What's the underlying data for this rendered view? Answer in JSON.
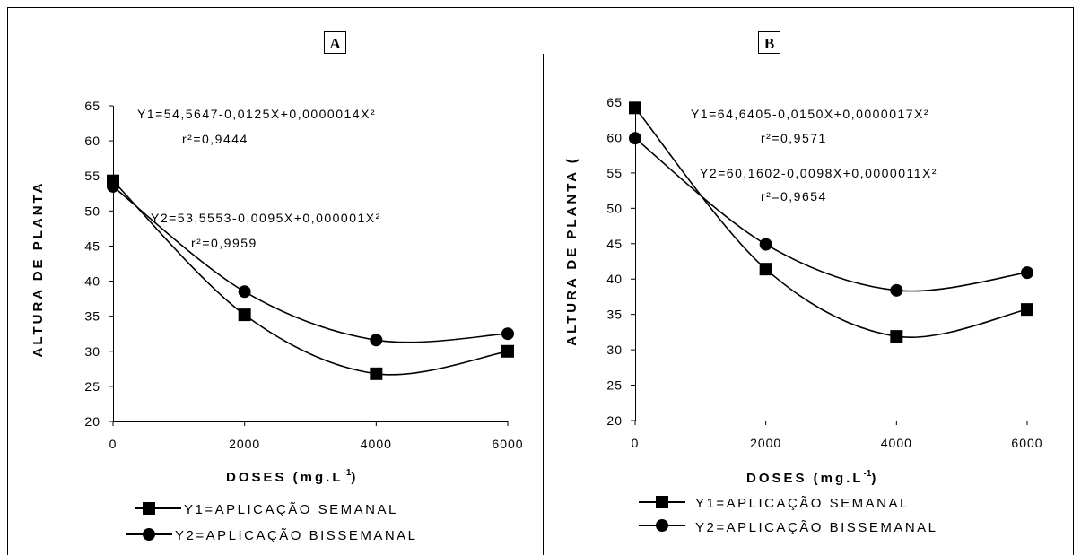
{
  "chart_data": [
    {
      "type": "line",
      "panel_label": "A",
      "ylabel": "ALTURA DE PLANTA",
      "xlabel_main": "DOSES (mg.L",
      "xlabel_sup": "-1",
      "xlabel_end": ")",
      "xlim": [
        0,
        6000
      ],
      "ylim": [
        20,
        65
      ],
      "xticks": [
        0,
        2000,
        4000,
        6000
      ],
      "yticks": [
        20,
        25,
        30,
        35,
        40,
        45,
        50,
        55,
        60,
        65
      ],
      "series": [
        {
          "name": "Y1=APLICAÇÃO SEMANAL",
          "marker": "square",
          "x": [
            0,
            2000,
            4000,
            6000
          ],
          "y": [
            54.3,
            35.2,
            26.8,
            30.0
          ]
        },
        {
          "name": "Y2=APLICAÇÃO BISSEMANAL",
          "marker": "circle",
          "x": [
            0,
            2000,
            4000,
            6000
          ],
          "y": [
            53.5,
            38.5,
            31.6,
            32.5
          ]
        }
      ],
      "curves": [
        {
          "a": 54.5647,
          "b": -0.0125,
          "c": 1.4e-06
        },
        {
          "a": 53.5553,
          "b": -0.0095,
          "c": 1e-06
        }
      ],
      "annotations": [
        "Y1=54,5647-0,0125X+0,0000014X²",
        "r²=0,9444",
        "Y2=53,5553-0,0095X+0,000001X²",
        "r²=0,9959"
      ]
    },
    {
      "type": "line",
      "panel_label": "B",
      "ylabel": "ALTURA DE PLANTA (",
      "xlabel_main": "DOSES (mg.L",
      "xlabel_sup": "-1",
      "xlabel_end": ")",
      "xlim": [
        0,
        6000
      ],
      "ylim": [
        20,
        65
      ],
      "xticks": [
        0,
        2000,
        4000,
        6000
      ],
      "yticks": [
        20,
        25,
        30,
        35,
        40,
        45,
        50,
        55,
        60,
        65
      ],
      "series": [
        {
          "name": "Y1=APLICAÇÃO SEMANAL",
          "marker": "square",
          "x": [
            0,
            2000,
            4000,
            6000
          ],
          "y": [
            64.2,
            41.4,
            31.9,
            35.7
          ]
        },
        {
          "name": "Y2=APLICAÇÃO BISSEMANAL",
          "marker": "circle",
          "x": [
            0,
            2000,
            4000,
            6000
          ],
          "y": [
            59.9,
            44.9,
            38.4,
            40.9
          ]
        }
      ],
      "curves": [
        {
          "a": 64.6405,
          "b": -0.015,
          "c": 1.7e-06
        },
        {
          "a": 60.1602,
          "b": -0.0098,
          "c": 1.1e-06
        }
      ],
      "annotations": [
        "Y1=64,6405-0,0150X+0,0000017X²",
        "r²=0,9571",
        "Y2=60,1602-0,0098X+0,0000011X²",
        "r²=0,9654"
      ]
    }
  ]
}
